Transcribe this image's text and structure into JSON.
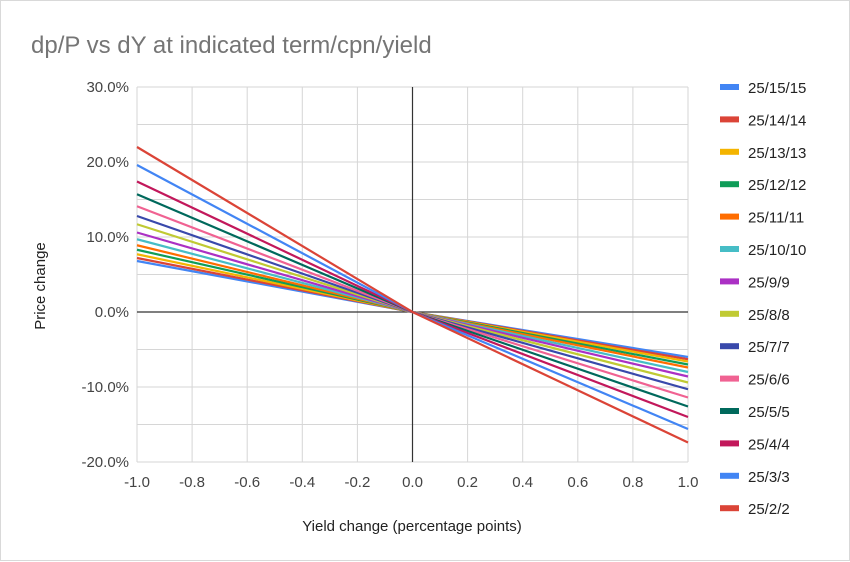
{
  "chart_data": {
    "type": "line",
    "title": "dp/P vs dY at indicated term/cpn/yield",
    "xlabel": "Yield change (percentage points)",
    "ylabel": "Price change",
    "xlim": [
      -1.0,
      1.0
    ],
    "ylim": [
      -0.2,
      0.3
    ],
    "x_ticks": [
      "-1.0",
      "-0.8",
      "-0.6",
      "-0.4",
      "-0.2",
      "0.0",
      "0.2",
      "0.4",
      "0.6",
      "0.8",
      "1.0"
    ],
    "y_ticks": [
      "30.0%",
      "20.0%",
      "10.0%",
      "0.0%",
      "-10.0%",
      "-20.0%"
    ],
    "grid": true,
    "legend_position": "right",
    "x": [
      -1.0,
      0.0,
      1.0
    ],
    "series": [
      {
        "name": "25/15/15",
        "color": "#4285f4",
        "values": [
          0.068,
          0.0,
          -0.06
        ]
      },
      {
        "name": "25/14/14",
        "color": "#db4437",
        "values": [
          0.072,
          0.0,
          -0.063
        ]
      },
      {
        "name": "25/13/13",
        "color": "#f4b400",
        "values": [
          0.077,
          0.0,
          -0.066
        ]
      },
      {
        "name": "25/12/12",
        "color": "#0f9d58",
        "values": [
          0.083,
          0.0,
          -0.07
        ]
      },
      {
        "name": "25/11/11",
        "color": "#ff6d00",
        "values": [
          0.089,
          0.0,
          -0.074
        ]
      },
      {
        "name": "25/10/10",
        "color": "#46bdc6",
        "values": [
          0.097,
          0.0,
          -0.08
        ]
      },
      {
        "name": "25/9/9",
        "color": "#ab30c4",
        "values": [
          0.106,
          0.0,
          -0.086
        ]
      },
      {
        "name": "25/8/8",
        "color": "#c0ca33",
        "values": [
          0.117,
          0.0,
          -0.094
        ]
      },
      {
        "name": "25/7/7",
        "color": "#3949ab",
        "values": [
          0.128,
          0.0,
          -0.103
        ]
      },
      {
        "name": "25/6/6",
        "color": "#f06292",
        "values": [
          0.141,
          0.0,
          -0.114
        ]
      },
      {
        "name": "25/5/5",
        "color": "#00695c",
        "values": [
          0.157,
          0.0,
          -0.126
        ]
      },
      {
        "name": "25/4/4",
        "color": "#c2185b",
        "values": [
          0.174,
          0.0,
          -0.14
        ]
      },
      {
        "name": "25/3/3",
        "color": "#4285f4",
        "values": [
          0.196,
          0.0,
          -0.156
        ]
      },
      {
        "name": "25/2/2",
        "color": "#db4437",
        "values": [
          0.22,
          0.0,
          -0.174
        ]
      }
    ]
  }
}
